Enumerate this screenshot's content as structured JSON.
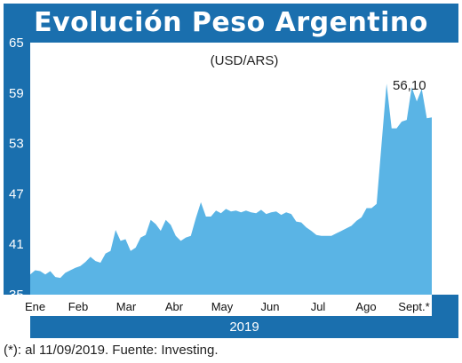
{
  "header": {
    "title": "Evolución Peso Argentino"
  },
  "footnote": "(*): al 11/09/2019. Fuente: Investing.",
  "colors": {
    "brand": "#1a6fae",
    "area_fill": "#5ab4e5"
  },
  "chart_data": {
    "type": "area",
    "unit_label": "(USD/ARS)",
    "year_label": "2019",
    "last_value_label": "56,10",
    "ylim": [
      35,
      65
    ],
    "yticks": [
      "35",
      "41",
      "47",
      "53",
      "59",
      "65"
    ],
    "xticks": [
      "Ene",
      "Feb",
      "Mar",
      "Abr",
      "May",
      "Jun",
      "Jul",
      "Ago",
      "Sept.*"
    ],
    "grid": false,
    "series": [
      {
        "values": [
          37.4,
          37.9,
          37.8,
          37.4,
          37.8,
          37.1,
          37.0,
          37.6,
          37.9,
          38.2,
          38.4,
          38.9,
          39.5,
          39.0,
          38.8,
          39.9,
          40.2,
          42.7,
          41.4,
          41.6,
          40.2,
          40.6,
          41.8,
          42.1,
          43.9,
          43.4,
          42.6,
          43.9,
          43.3,
          42.0,
          41.4,
          41.8,
          42.0,
          44.1,
          46.0,
          44.3,
          44.3,
          45.0,
          44.7,
          45.2,
          44.9,
          45.0,
          44.8,
          45.0,
          44.8,
          44.7,
          45.1,
          44.6,
          44.8,
          44.9,
          44.5,
          44.8,
          44.6,
          43.7,
          43.6,
          43.0,
          42.6,
          42.1,
          42.0,
          42.0,
          42.0,
          42.3,
          42.6,
          42.9,
          43.2,
          43.8,
          44.2,
          45.3,
          45.3,
          45.8,
          53.0,
          60.1,
          54.8,
          54.8,
          55.6,
          55.8,
          59.7,
          58.0,
          59.5,
          56.0,
          56.1
        ]
      }
    ]
  }
}
